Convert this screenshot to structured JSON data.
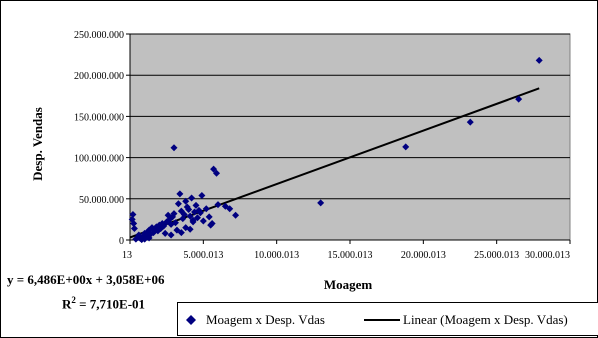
{
  "chart_data": {
    "type": "scatter",
    "title": "",
    "xlabel": "Moagem",
    "ylabel": "Desp. Vendas",
    "x_tick_values": [
      0,
      5000000000000,
      10000000000000,
      15000000000000,
      20000000000000,
      25000000000000,
      30000000000000
    ],
    "x_tick_labels": [
      "13",
      "5.000.013",
      "10.000.013",
      "15.000.013",
      "20.000.013",
      "25.000.013",
      "30.000.013"
    ],
    "y_tick_values": [
      0,
      50000000,
      100000000,
      150000000,
      200000000,
      250000000
    ],
    "y_tick_labels": [
      "0",
      "50.000.000",
      "100.000.000",
      "150.000.000",
      "200.000.000",
      "250.000.000"
    ],
    "xlim": [
      0,
      30000000000000
    ],
    "ylim": [
      0,
      250000000
    ],
    "grid": "horizontal",
    "plot_background": "#c0c0c0",
    "series": [
      {
        "name": "Moagem x Desp. Vdas",
        "marker": "diamond",
        "color": "#000080",
        "points": [
          [
            200000000000,
            31000000
          ],
          [
            150000000000,
            25000000
          ],
          [
            250000000000,
            20000000
          ],
          [
            300000000000,
            14000000
          ],
          [
            400000000000,
            1000000
          ],
          [
            550000000000,
            3000000
          ],
          [
            700000000000,
            2000000
          ],
          [
            800000000000,
            500000
          ],
          [
            600000000000,
            6000000
          ],
          [
            900000000000,
            4000000
          ],
          [
            1000000000000,
            8000000
          ],
          [
            1100000000000,
            5000000
          ],
          [
            1200000000000,
            10000000
          ],
          [
            1300000000000,
            12000000
          ],
          [
            1400000000000,
            7000000
          ],
          [
            1500000000000,
            15000000
          ],
          [
            1600000000000,
            9000000
          ],
          [
            1700000000000,
            13000000
          ],
          [
            1800000000000,
            16000000
          ],
          [
            1900000000000,
            11000000
          ],
          [
            2000000000000,
            18000000
          ],
          [
            2100000000000,
            14000000
          ],
          [
            2200000000000,
            20000000
          ],
          [
            2300000000000,
            17000000
          ],
          [
            2400000000000,
            8000000
          ],
          [
            2500000000000,
            22000000
          ],
          [
            2600000000000,
            30000000
          ],
          [
            2700000000000,
            25000000
          ],
          [
            2800000000000,
            19000000
          ],
          [
            2900000000000,
            28000000
          ],
          [
            3000000000000,
            112000000
          ],
          [
            3100000000000,
            21000000
          ],
          [
            3200000000000,
            12000000
          ],
          [
            3300000000000,
            44000000
          ],
          [
            3400000000000,
            56000000
          ],
          [
            3500000000000,
            35000000
          ],
          [
            3600000000000,
            26000000
          ],
          [
            3700000000000,
            31000000
          ],
          [
            3800000000000,
            47000000
          ],
          [
            3900000000000,
            40000000
          ],
          [
            4000000000000,
            37000000
          ],
          [
            4100000000000,
            29000000
          ],
          [
            4200000000000,
            51000000
          ],
          [
            4300000000000,
            24000000
          ],
          [
            4400000000000,
            34000000
          ],
          [
            4500000000000,
            42000000
          ],
          [
            4600000000000,
            27000000
          ],
          [
            4700000000000,
            36000000
          ],
          [
            4800000000000,
            33000000
          ],
          [
            4900000000000,
            54000000
          ],
          [
            5000000000000,
            23000000
          ],
          [
            5200000000000,
            38000000
          ],
          [
            5400000000000,
            28000000
          ],
          [
            5500000000000,
            18000000
          ],
          [
            5600000000000,
            20000000
          ],
          [
            5700000000000,
            86000000
          ],
          [
            5900000000000,
            81000000
          ],
          [
            6000000000000,
            43000000
          ],
          [
            6500000000000,
            41000000
          ],
          [
            6800000000000,
            38000000
          ],
          [
            7200000000000,
            30000000
          ],
          [
            3500000000000,
            9000000
          ],
          [
            3800000000000,
            15000000
          ],
          [
            4100000000000,
            13000000
          ],
          [
            4300000000000,
            22000000
          ],
          [
            3000000000000,
            32000000
          ],
          [
            2800000000000,
            6000000
          ],
          [
            1000000000000,
            1000000
          ],
          [
            1300000000000,
            2500000
          ],
          [
            13000000000000,
            45000000
          ],
          [
            18800000000000,
            113000000
          ],
          [
            23200000000000,
            143000000
          ],
          [
            26500000000000,
            171000000
          ],
          [
            27900000000000,
            218000000
          ]
        ]
      },
      {
        "name": "Linear (Moagem x Desp. Vdas)",
        "type": "line",
        "color": "#000000",
        "slope": 6.486e-06,
        "intercept": 3058000,
        "x_range": [
          0,
          27900000000000
        ]
      }
    ],
    "trendline_equation": "y = 6,486E+00x + 3,058E+06",
    "r_squared_label": "R",
    "r_squared_exp": "2",
    "r_squared_value": " = 7,710E-01",
    "legend_position": "bottom-right"
  },
  "legend": {
    "series1_label": "Moagem x Desp. Vdas",
    "series2_label": "Linear (Moagem x Desp. Vdas)"
  }
}
